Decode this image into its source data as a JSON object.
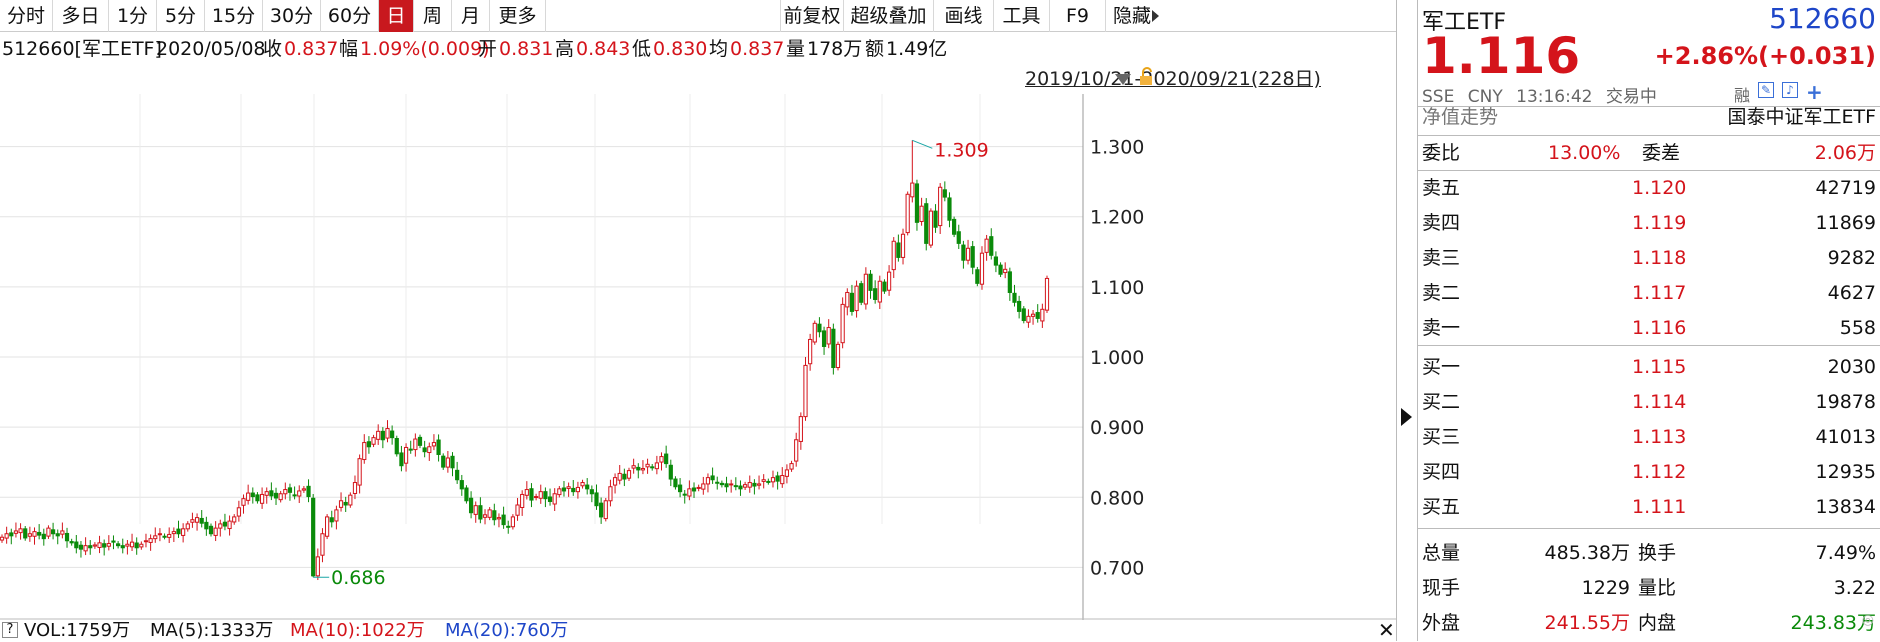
{
  "toolbar": {
    "left": [
      "分时",
      "多日",
      "1分",
      "5分",
      "15分",
      "30分",
      "60分",
      "日",
      "周",
      "月",
      "更多"
    ],
    "active": "日",
    "right": [
      "前复权",
      "超级叠加",
      "画线",
      "工具",
      "F9",
      "隐藏"
    ]
  },
  "infobar": {
    "code": "512660[军工ETF]",
    "date": "2020/05/08",
    "close_label": "收",
    "close": "0.837",
    "change_label": "幅",
    "change": "1.09%(0.009)",
    "open_label": "开",
    "open": "0.831",
    "high_label": "高",
    "high": "0.843",
    "low_label": "低",
    "low": "0.830",
    "avg_label": "均",
    "avg": "0.837",
    "volume_label": "量",
    "volume": "178万",
    "amount_label": "额",
    "amount": "1.49亿"
  },
  "range": "2019/10/21-2020/09/21(228日)",
  "chart_data": {
    "type": "candlestick",
    "y_ticks": [
      "1.300",
      "1.200",
      "1.100",
      "1.000",
      "0.900",
      "0.800",
      "0.700"
    ],
    "ylim": [
      0.625,
      1.375
    ],
    "max_label": "1.309",
    "min_label": "0.686",
    "trading_days": 228,
    "closes": [
      0.743,
      0.748,
      0.745,
      0.752,
      0.755,
      0.742,
      0.748,
      0.751,
      0.746,
      0.741,
      0.756,
      0.748,
      0.745,
      0.752,
      0.738,
      0.735,
      0.728,
      0.726,
      0.731,
      0.728,
      0.732,
      0.735,
      0.729,
      0.734,
      0.736,
      0.731,
      0.728,
      0.733,
      0.736,
      0.728,
      0.733,
      0.738,
      0.741,
      0.745,
      0.748,
      0.744,
      0.747,
      0.751,
      0.748,
      0.755,
      0.762,
      0.768,
      0.771,
      0.763,
      0.755,
      0.748,
      0.756,
      0.762,
      0.759,
      0.766,
      0.772,
      0.785,
      0.798,
      0.806,
      0.801,
      0.795,
      0.804,
      0.808,
      0.802,
      0.799,
      0.805,
      0.811,
      0.807,
      0.803,
      0.809,
      0.812,
      0.801,
      0.688,
      0.715,
      0.748,
      0.772,
      0.765,
      0.782,
      0.795,
      0.789,
      0.803,
      0.821,
      0.855,
      0.878,
      0.872,
      0.885,
      0.894,
      0.882,
      0.898,
      0.885,
      0.862,
      0.845,
      0.871,
      0.868,
      0.883,
      0.874,
      0.865,
      0.872,
      0.878,
      0.861,
      0.843,
      0.856,
      0.842,
      0.825,
      0.812,
      0.795,
      0.778,
      0.788,
      0.769,
      0.775,
      0.782,
      0.768,
      0.771,
      0.761,
      0.758,
      0.772,
      0.789,
      0.804,
      0.811,
      0.796,
      0.801,
      0.808,
      0.798,
      0.794,
      0.805,
      0.812,
      0.809,
      0.815,
      0.808,
      0.814,
      0.821,
      0.812,
      0.805,
      0.788,
      0.772,
      0.795,
      0.815,
      0.828,
      0.834,
      0.826,
      0.838,
      0.845,
      0.839,
      0.841,
      0.847,
      0.842,
      0.849,
      0.858,
      0.848,
      0.826,
      0.815,
      0.808,
      0.803,
      0.812,
      0.809,
      0.814,
      0.819,
      0.828,
      0.825,
      0.821,
      0.818,
      0.815,
      0.819,
      0.816,
      0.812,
      0.818,
      0.821,
      0.816,
      0.819,
      0.825,
      0.822,
      0.828,
      0.823,
      0.831,
      0.839,
      0.848,
      0.882,
      0.915,
      0.988,
      1.025,
      1.048,
      1.036,
      1.015,
      1.042,
      0.985,
      1.018,
      1.075,
      1.092,
      1.065,
      1.101,
      1.078,
      1.118,
      1.095,
      1.082,
      1.108,
      1.094,
      1.121,
      1.165,
      1.142,
      1.175,
      1.232,
      1.248,
      1.192,
      1.215,
      1.162,
      1.208,
      1.185,
      1.242,
      1.228,
      1.195,
      1.175,
      1.162,
      1.138,
      1.155,
      1.128,
      1.105,
      1.148,
      1.168,
      1.145,
      1.131,
      1.118,
      1.125,
      1.092,
      1.078,
      1.065,
      1.052,
      1.058,
      1.061,
      1.055,
      1.068,
      1.112
    ]
  },
  "quote": {
    "name": "军工ETF",
    "code": "512660",
    "price": "1.116",
    "change": "+2.86%(+0.031)",
    "exchange": "SSE",
    "currency": "CNY",
    "time": "13:16:42",
    "status": "交易中",
    "nav_label": "净值走势",
    "tracking": "国泰中证军工ETF"
  },
  "order_book": {
    "ratio_label": "委比",
    "ratio": "13.00%",
    "diff_label": "委差",
    "diff": "2.06万",
    "asks": [
      {
        "label": "卖五",
        "price": "1.120",
        "qty": "42719"
      },
      {
        "label": "卖四",
        "price": "1.119",
        "qty": "11869"
      },
      {
        "label": "卖三",
        "price": "1.118",
        "qty": "9282"
      },
      {
        "label": "卖二",
        "price": "1.117",
        "qty": "4627"
      },
      {
        "label": "卖一",
        "price": "1.116",
        "qty": "558"
      }
    ],
    "bids": [
      {
        "label": "买一",
        "price": "1.115",
        "qty": "2030"
      },
      {
        "label": "买二",
        "price": "1.114",
        "qty": "19878"
      },
      {
        "label": "买三",
        "price": "1.113",
        "qty": "41013"
      },
      {
        "label": "买四",
        "price": "1.112",
        "qty": "12935"
      },
      {
        "label": "买五",
        "price": "1.111",
        "qty": "13834"
      }
    ]
  },
  "stats": [
    {
      "l1": "总量",
      "v1": "485.38万",
      "l2": "换手",
      "v2": "7.49%",
      "c1": "#111",
      "c2": "#111"
    },
    {
      "l1": "现手",
      "v1": "1229",
      "l2": "量比",
      "v2": "3.22",
      "c1": "#111",
      "c2": "#111"
    },
    {
      "l1": "外盘",
      "v1": "241.55万",
      "l2": "内盘",
      "v2": "243.83万",
      "c1": "#d4141b",
      "c2": "#0a8a0a"
    }
  ],
  "volume_bar": {
    "vol": "VOL:1759万",
    "ma5": "MA(5):1333万",
    "ma10": "MA(10):1022万",
    "ma20": "MA(20):760万"
  },
  "colors": {
    "up": "#d4141b",
    "down": "#0a8a0a",
    "accent_blue": "#1e46c8"
  }
}
